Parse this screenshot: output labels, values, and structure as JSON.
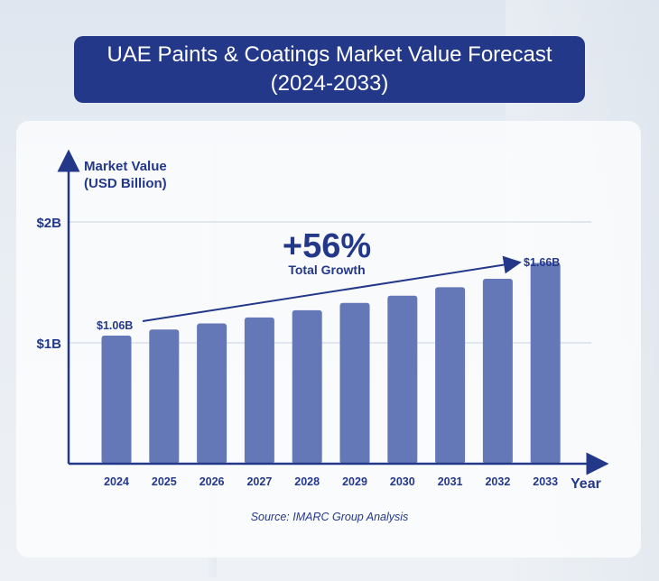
{
  "title": {
    "line1": "UAE Paints & Coatings Market Value Forecast",
    "line2": "(2024-2033)"
  },
  "source": "Source: IMARC Group Analysis",
  "colors": {
    "bar": "#6478b8",
    "navy": "#24388a",
    "grid": "#c9d2e2"
  },
  "chart_data": {
    "type": "bar",
    "categories": [
      "2024",
      "2025",
      "2026",
      "2027",
      "2028",
      "2029",
      "2030",
      "2031",
      "2032",
      "2033"
    ],
    "values": [
      1.06,
      1.11,
      1.16,
      1.21,
      1.27,
      1.33,
      1.39,
      1.46,
      1.53,
      1.66
    ],
    "ylabel_line1": "Market Value",
    "ylabel_line2": "(USD Billion)",
    "xlabel": "Year",
    "yticks": [
      {
        "value": 1,
        "label": "$1B"
      },
      {
        "value": 2,
        "label": "$2B"
      }
    ],
    "ylim": [
      0,
      2.5
    ],
    "annotations": {
      "start_label": "$1.06B",
      "end_label": "$1.66B",
      "growth": "+56%",
      "growth_caption": "Total Growth"
    }
  }
}
